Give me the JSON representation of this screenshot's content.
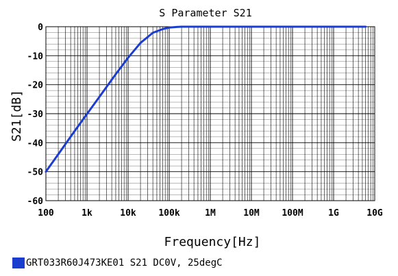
{
  "chart_data": {
    "type": "line",
    "title": "S Parameter S21",
    "xlabel": "Frequency[Hz]",
    "ylabel": "S21[dB]",
    "xscale": "log",
    "xlim": [
      100,
      10000000000
    ],
    "ylim": [
      -60,
      0
    ],
    "grid": true,
    "legend_position": "bottom-left",
    "x_tick_values": [
      100,
      1000,
      10000,
      100000,
      1000000,
      10000000,
      100000000,
      1000000000,
      10000000000
    ],
    "x_tick_labels": [
      "100",
      "1k",
      "10k",
      "100k",
      "1M",
      "10M",
      "100M",
      "1G",
      "10G"
    ],
    "y_tick_values": [
      0,
      -10,
      -20,
      -30,
      -40,
      -50,
      -60
    ],
    "y_tick_labels": [
      "0",
      "-10",
      "-20",
      "-30",
      "-40",
      "-50",
      "-60"
    ],
    "series": [
      {
        "name": "GRT033R60J473KE01 S21 DC0V, 25degC",
        "color": "#1a3ccf",
        "x": [
          100,
          200,
          500,
          1000,
          2000,
          5000,
          10000,
          20000,
          40000,
          70000,
          100000,
          150000,
          200000,
          500000,
          1000000,
          10000000,
          100000000,
          1000000000,
          6000000000
        ],
        "y": [
          -50,
          -44,
          -36,
          -30.1,
          -24.2,
          -16.4,
          -10.7,
          -5.6,
          -2.1,
          -0.8,
          -0.3,
          -0.1,
          0,
          0,
          0,
          0,
          0,
          0,
          0
        ]
      }
    ]
  }
}
